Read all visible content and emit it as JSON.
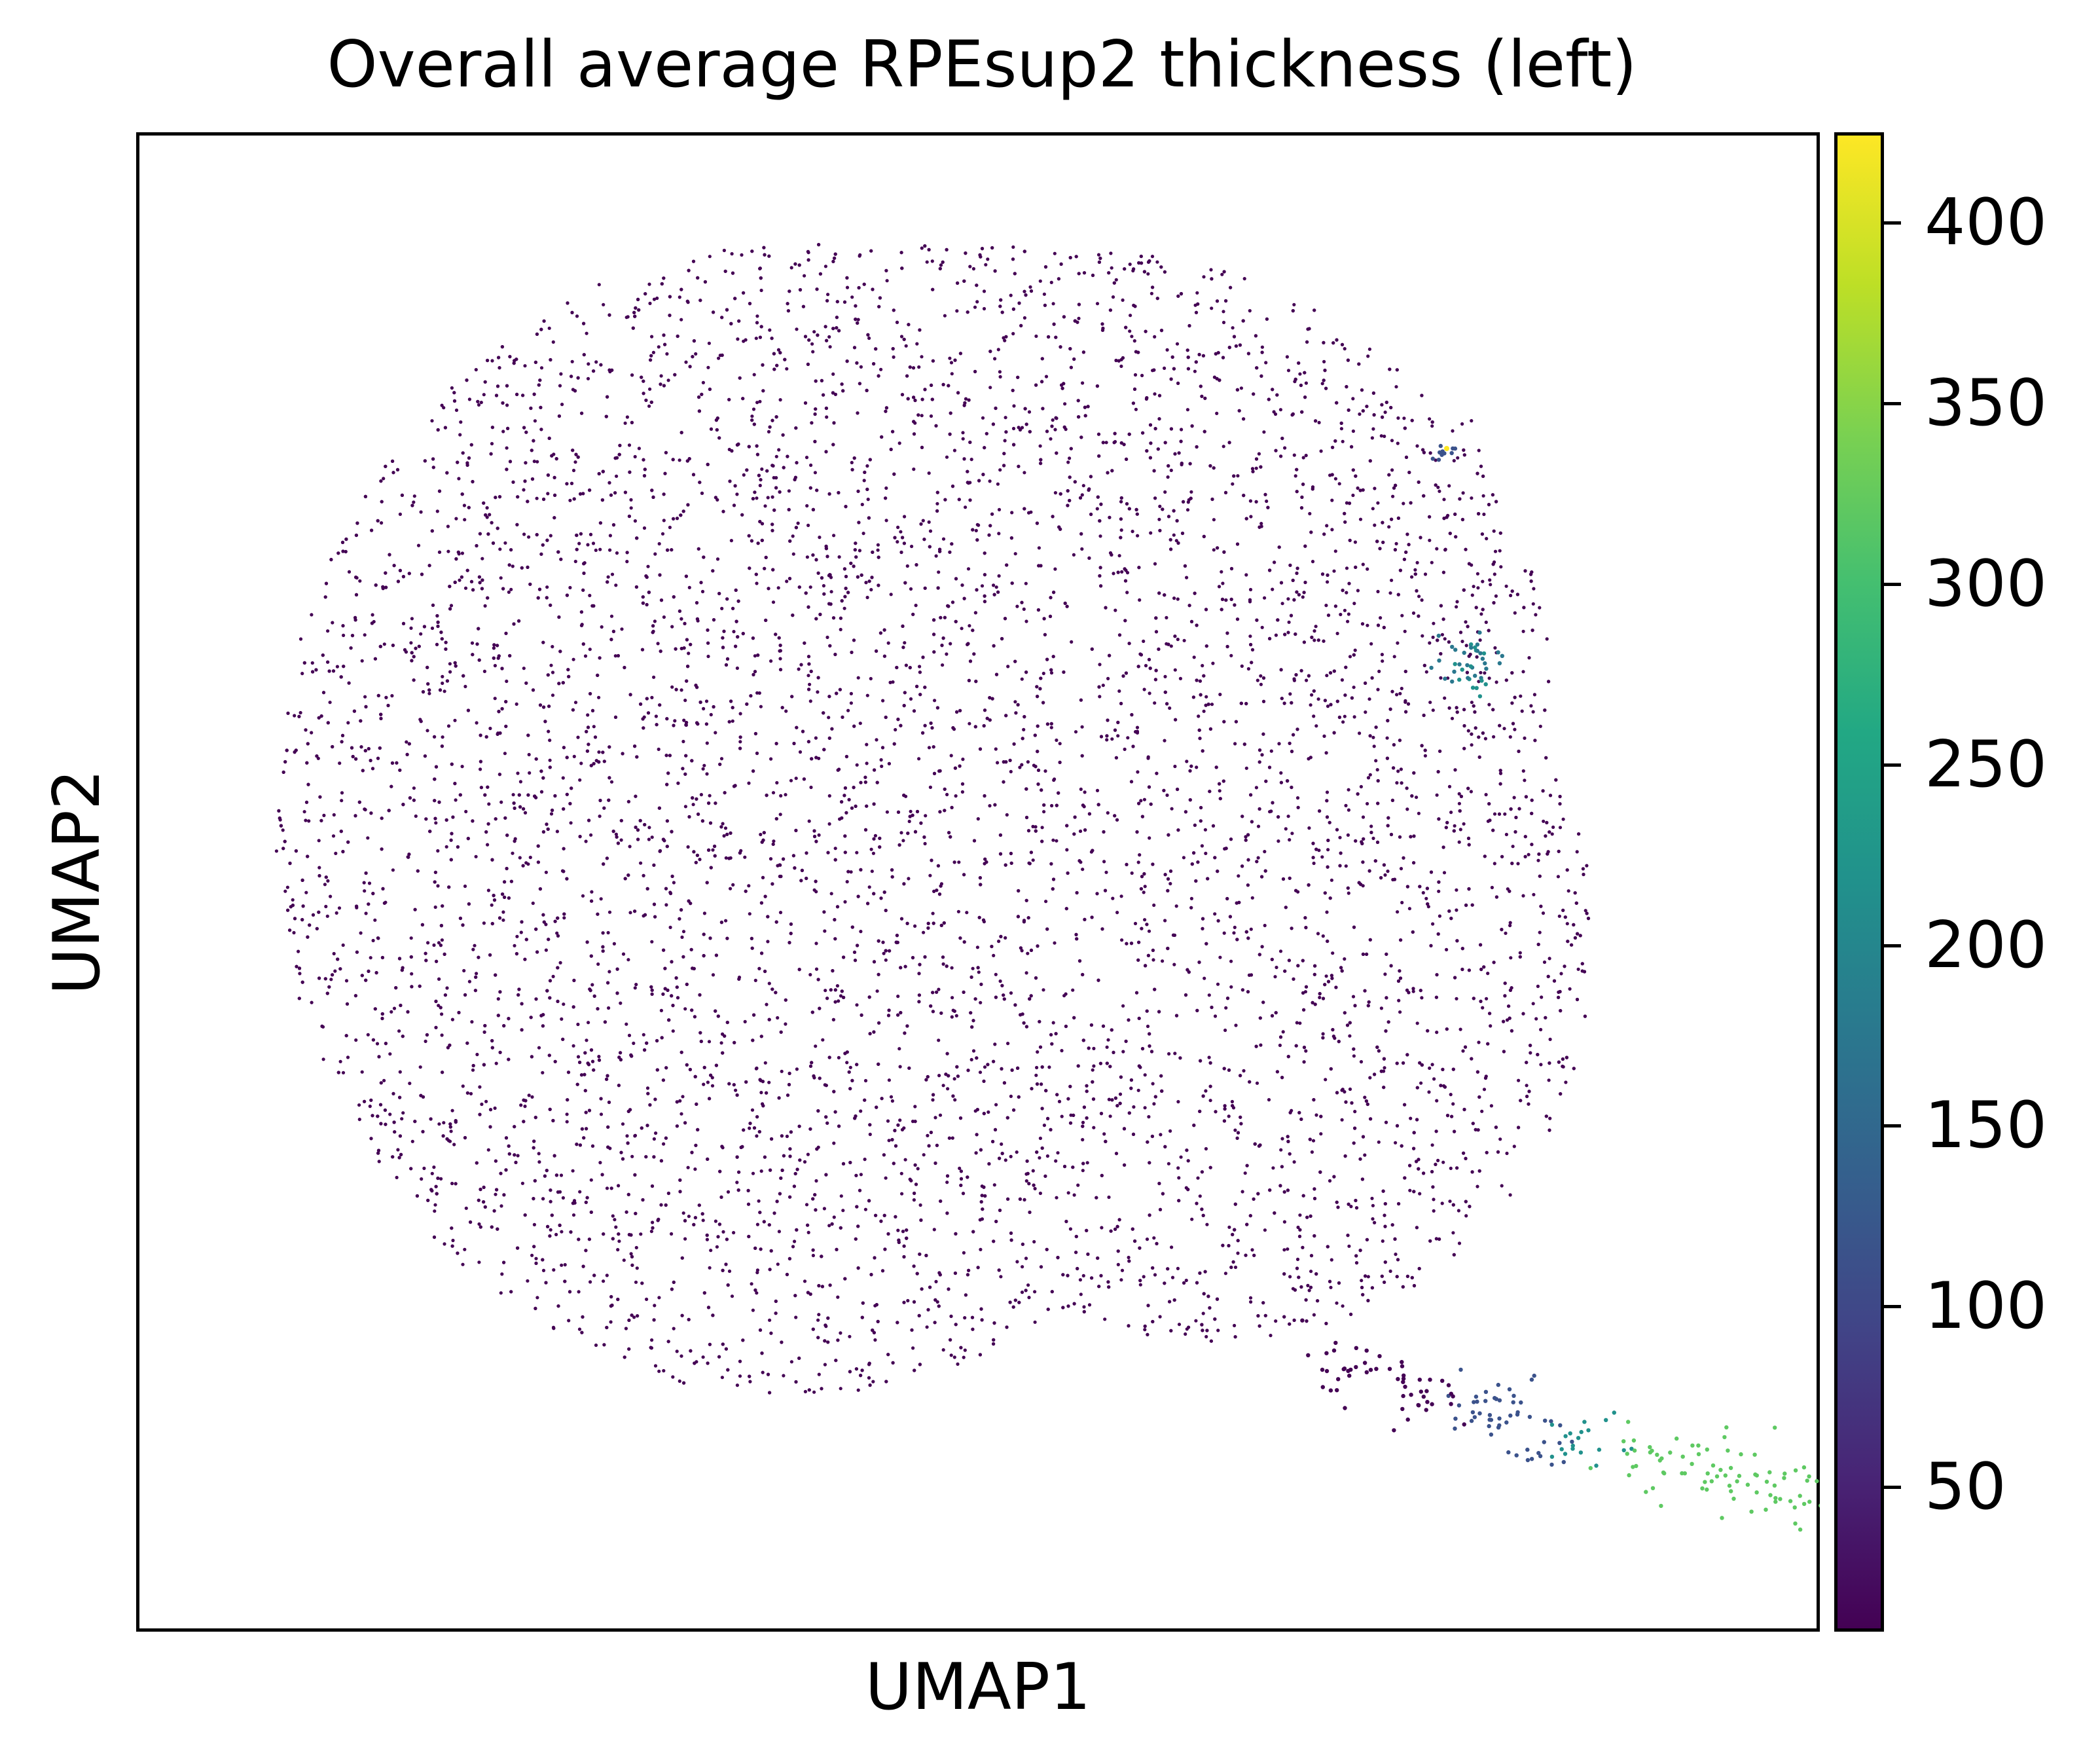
{
  "chart_data": {
    "type": "scatter",
    "title": "Overall average RPEsup2 thickness (left)",
    "xlabel": "UMAP1",
    "ylabel": "UMAP2",
    "colorbar": {
      "colormap": "viridis",
      "range": [
        10,
        425
      ],
      "ticks": [
        "50",
        "100",
        "150",
        "200",
        "250",
        "300",
        "350",
        "400"
      ],
      "tick_values": [
        50,
        100,
        150,
        200,
        250,
        300,
        350,
        400
      ]
    },
    "grid": false,
    "axis_ticks": false,
    "series": [
      {
        "color": "#440154",
        "values_range": "approximately 10-40",
        "points": "dense cloud of ~40000 cells"
      },
      {
        "color": "#3b528b",
        "values_range": "approximately 80-150",
        "points": "small clusters near upper-right edge and lower-right tail"
      },
      {
        "color": "#5ec962",
        "values_range": "approximately 280-340",
        "points": "lower-right tail extension"
      }
    ]
  }
}
